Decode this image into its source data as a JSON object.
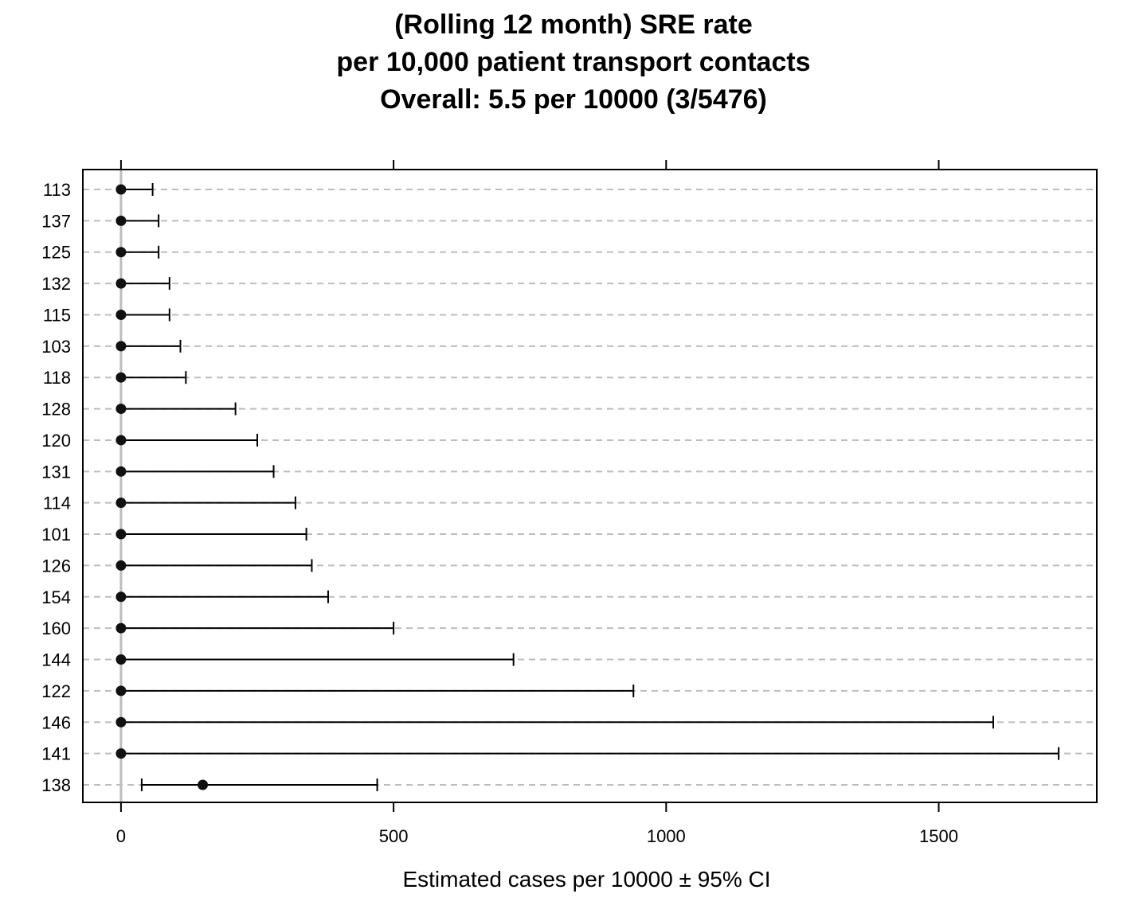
{
  "chart_data": {
    "type": "dot-errorbar",
    "title": [
      "(Rolling 12 month) SRE rate",
      "per 10,000 patient transport contacts",
      "Overall:  5.5 per 10000  (3/5476)"
    ],
    "xlabel": "Estimated cases per 10000 ±  95% CI",
    "xlim": [
      -70,
      1790
    ],
    "xticks": [
      0,
      500,
      1000,
      1500
    ],
    "grid": "dashed horizontal",
    "reference_line": 0,
    "categories": [
      "113",
      "137",
      "125",
      "132",
      "115",
      "103",
      "118",
      "128",
      "120",
      "131",
      "114",
      "101",
      "126",
      "154",
      "160",
      "144",
      "122",
      "146",
      "141",
      "138"
    ],
    "series": [
      {
        "estimate": [
          0,
          0,
          0,
          0,
          0,
          0,
          0,
          0,
          0,
          0,
          0,
          0,
          0,
          0,
          0,
          0,
          0,
          0,
          0,
          150
        ],
        "lower": [
          0,
          0,
          0,
          0,
          0,
          0,
          0,
          0,
          0,
          0,
          0,
          0,
          0,
          0,
          0,
          0,
          0,
          0,
          0,
          38
        ],
        "upper": [
          58,
          69,
          69,
          89,
          89,
          109,
          119,
          210,
          250,
          280,
          320,
          340,
          350,
          380,
          500,
          720,
          940,
          1600,
          1720,
          470
        ]
      }
    ]
  }
}
